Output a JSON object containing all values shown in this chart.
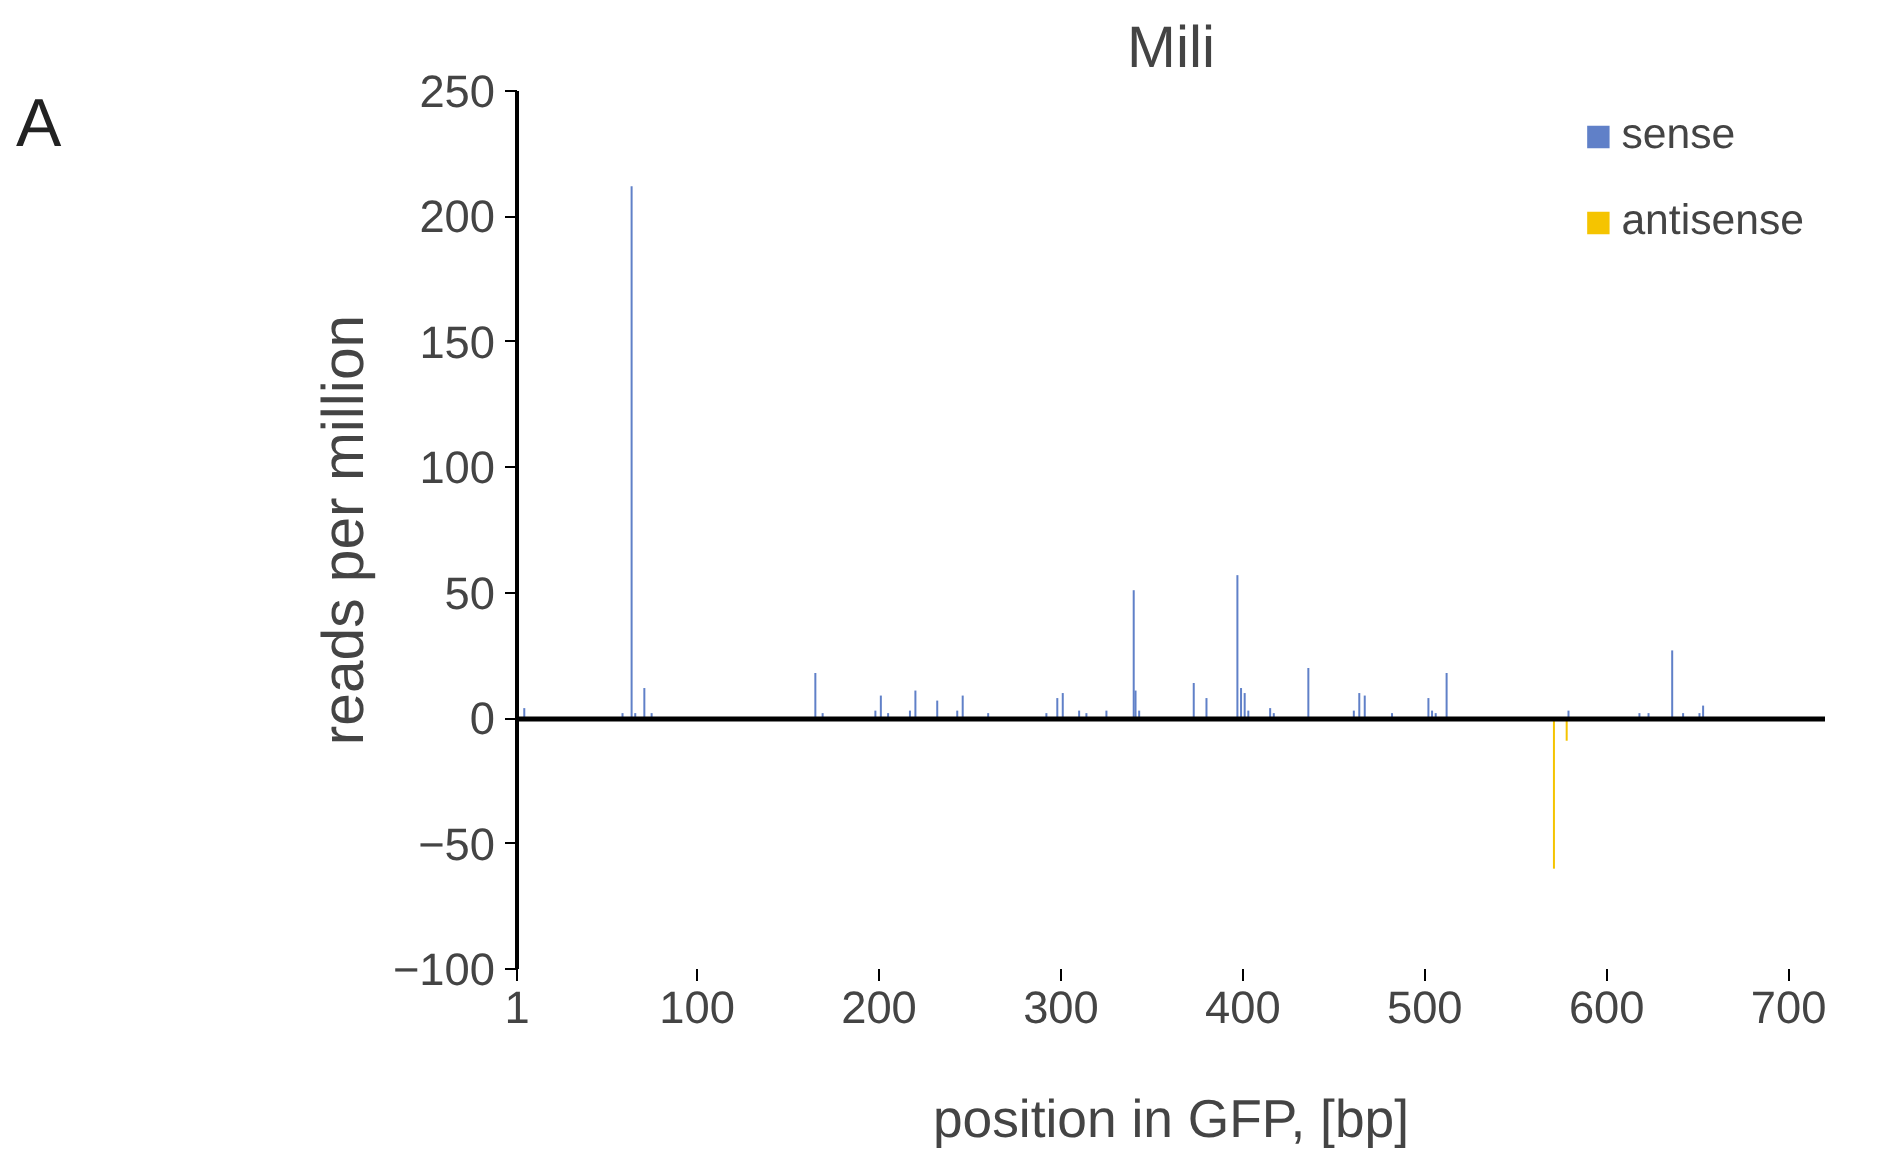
{
  "chart_data": {
    "type": "bar",
    "title": "Mili",
    "xlabel": "position in GFP, [bp]",
    "ylabel": "reads per million",
    "annotations": [
      "A"
    ],
    "series": [
      {
        "name": "sense",
        "color": "#6080c8",
        "x": [
          5,
          59,
          64,
          66,
          71,
          75,
          165,
          169,
          198,
          201,
          205,
          217,
          220,
          232,
          243,
          246,
          260,
          292,
          298,
          301,
          310,
          314,
          325,
          340,
          341,
          343,
          373,
          380,
          397,
          399,
          401,
          403,
          415,
          417,
          436,
          461,
          464,
          467,
          482,
          502,
          504,
          506,
          512,
          579,
          618,
          623,
          636,
          642,
          651,
          653
        ],
        "values": [
          4,
          2,
          212,
          2,
          12,
          2,
          18,
          2,
          3,
          9,
          2,
          3,
          11,
          7,
          3,
          9,
          2,
          2,
          8,
          10,
          3,
          2,
          3,
          51,
          11,
          3,
          14,
          8,
          57,
          12,
          10,
          3,
          4,
          2,
          20,
          3,
          10,
          9,
          2,
          8,
          3,
          2,
          18,
          3,
          2,
          2,
          27,
          2,
          2,
          5
        ]
      },
      {
        "name": "antisense",
        "color": "#f5c400",
        "x": [
          571,
          578
        ],
        "values": [
          -60,
          -9
        ]
      }
    ],
    "xlim": [
      1,
      720
    ],
    "ylim": [
      -100,
      250
    ],
    "xticks": [
      1,
      100,
      200,
      300,
      400,
      500,
      600,
      700
    ],
    "yticks": [
      -100,
      -50,
      0,
      50,
      100,
      150,
      200,
      250
    ],
    "legend": "top right"
  }
}
